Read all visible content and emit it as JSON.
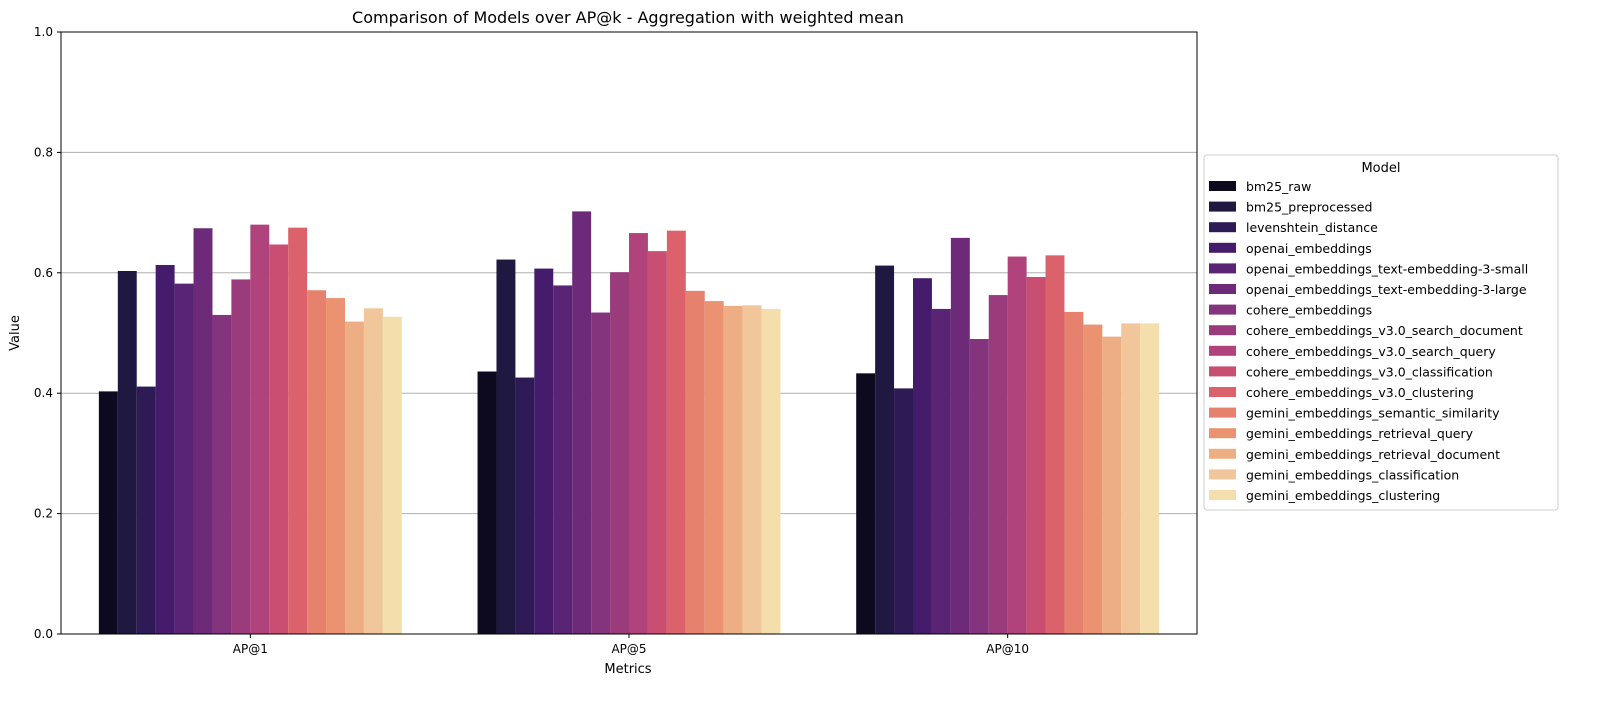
{
  "chart_data": {
    "type": "bar",
    "title": "Comparison of Models over AP@k - Aggregation with weighted mean",
    "xlabel": "Metrics",
    "ylabel": "Value",
    "ylim": [
      0,
      1.0
    ],
    "yticks": [
      "0.0",
      "0.2",
      "0.4",
      "0.6",
      "0.8",
      "1.0"
    ],
    "ytick_values": [
      0,
      0.2,
      0.4,
      0.6,
      0.8,
      1.0
    ],
    "grid": "y",
    "legend_title": "Model",
    "legend_placement": "center-right outside",
    "categories": [
      "AP@1",
      "AP@5",
      "AP@10"
    ],
    "series": [
      {
        "name": "bm25_raw",
        "color": "#0d0a1f",
        "values": [
          0.403,
          0.436,
          0.433
        ]
      },
      {
        "name": "bm25_preprocessed",
        "color": "#1f1840",
        "values": [
          0.603,
          0.622,
          0.612
        ]
      },
      {
        "name": "levenshtein_distance",
        "color": "#2e1a55",
        "values": [
          0.411,
          0.426,
          0.408
        ]
      },
      {
        "name": "openai_embeddings",
        "color": "#451c6b",
        "values": [
          0.613,
          0.607,
          0.591
        ]
      },
      {
        "name": "openai_embeddings_text-embedding-3-small",
        "color": "#5a2474",
        "values": [
          0.582,
          0.579,
          0.54
        ]
      },
      {
        "name": "openai_embeddings_text-embedding-3-large",
        "color": "#6c2a79",
        "values": [
          0.674,
          0.702,
          0.658
        ]
      },
      {
        "name": "cohere_embeddings",
        "color": "#84347c",
        "values": [
          0.53,
          0.534,
          0.49
        ]
      },
      {
        "name": "cohere_embeddings_v3.0_search_document",
        "color": "#9a3b7c",
        "values": [
          0.589,
          0.601,
          0.563
        ]
      },
      {
        "name": "cohere_embeddings_v3.0_search_query",
        "color": "#b0437b",
        "values": [
          0.68,
          0.666,
          0.627
        ]
      },
      {
        "name": "cohere_embeddings_v3.0_classification",
        "color": "#c84f72",
        "values": [
          0.647,
          0.636,
          0.593
        ]
      },
      {
        "name": "cohere_embeddings_v3.0_clustering",
        "color": "#db626b",
        "values": [
          0.675,
          0.67,
          0.629
        ]
      },
      {
        "name": "gemini_embeddings_semantic_similarity",
        "color": "#e5816c",
        "values": [
          0.571,
          0.57,
          0.535
        ]
      },
      {
        "name": "gemini_embeddings_retrieval_query",
        "color": "#eb9270",
        "values": [
          0.558,
          0.553,
          0.514
        ]
      },
      {
        "name": "gemini_embeddings_retrieval_document",
        "color": "#eeae84",
        "values": [
          0.519,
          0.545,
          0.494
        ]
      },
      {
        "name": "gemini_embeddings_classification",
        "color": "#f1c69a",
        "values": [
          0.541,
          0.546,
          0.516
        ]
      },
      {
        "name": "gemini_embeddings_clustering",
        "color": "#f4deac",
        "values": [
          0.527,
          0.54,
          0.516
        ]
      }
    ]
  }
}
